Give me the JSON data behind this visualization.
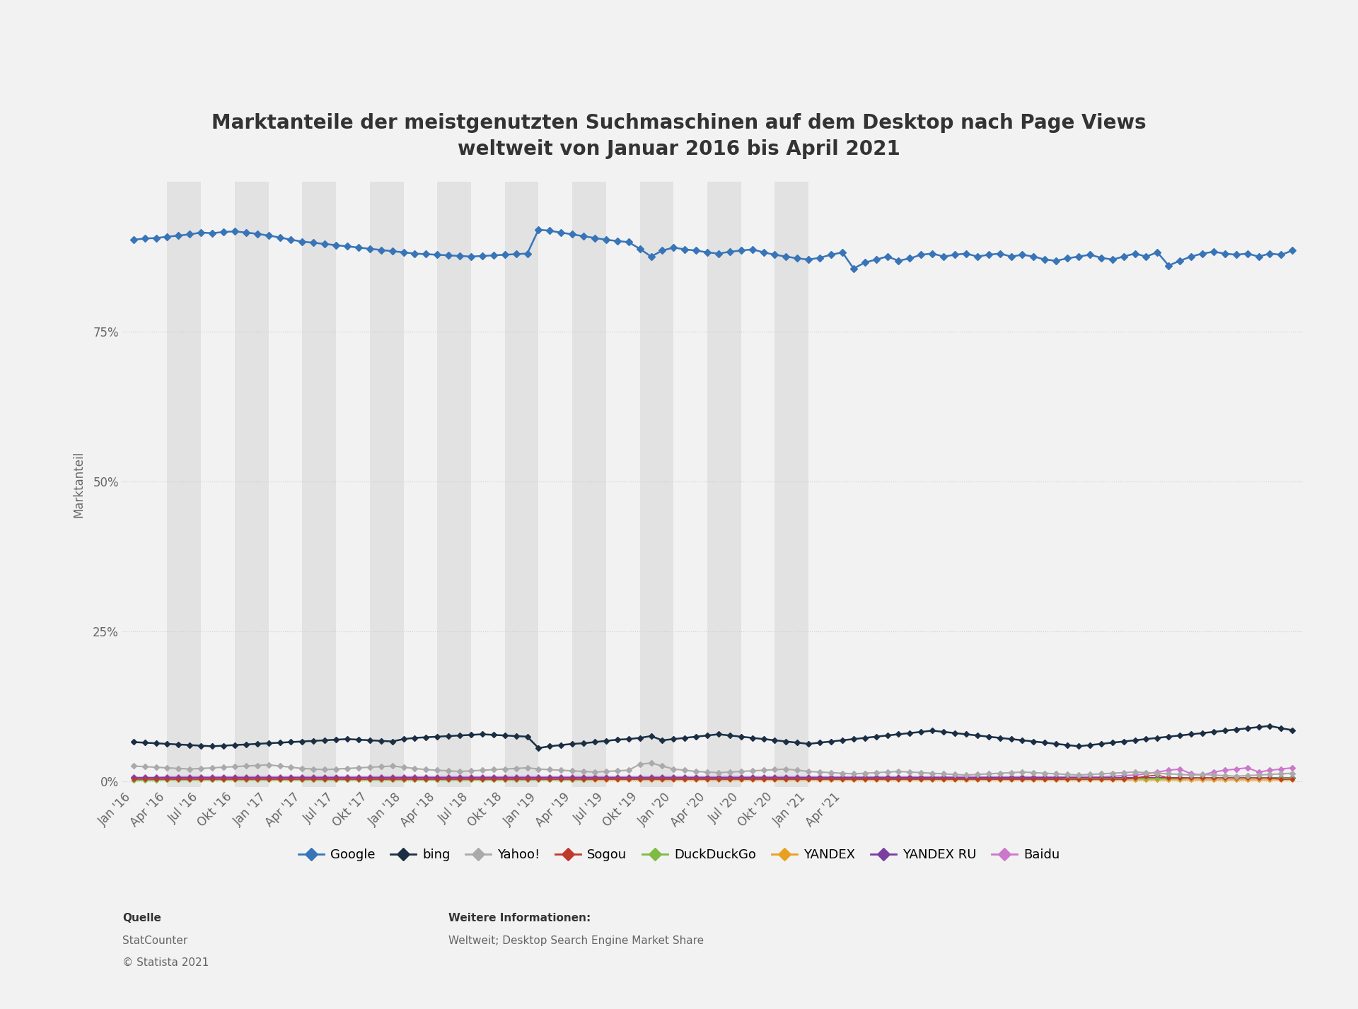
{
  "title": "Marktanteile der meistgenutzten Suchmaschinen auf dem Desktop nach Page Views\nweltweit von Januar 2016 bis April 2021",
  "ylabel": "Marktanteil",
  "bg_color": "#f2f2f2",
  "plot_bg_color": "#f2f2f2",
  "alt_col_color": "#e2e2e2",
  "grid_color": "#cccccc",
  "x_labels": [
    "Jan '16",
    "Apr '16",
    "Jul '16",
    "Okt '16",
    "Jan '17",
    "Apr '17",
    "Jul '17",
    "Okt '17",
    "Jan '18",
    "Apr '18",
    "Jul '18",
    "Okt '18",
    "Jan '19",
    "Apr '19",
    "Jul '19",
    "Okt '19",
    "Jan '20",
    "Apr '20",
    "Jul '20",
    "Okt '20",
    "Jan '21",
    "Apr '21"
  ],
  "series": {
    "Google": {
      "color": "#3874b8",
      "marker": "D",
      "linewidth": 1.8,
      "markersize": 5,
      "data": [
        90.3,
        90.5,
        90.6,
        90.8,
        91.0,
        91.2,
        91.5,
        91.4,
        91.6,
        91.7,
        91.5,
        91.3,
        91.0,
        90.7,
        90.3,
        90.0,
        89.8,
        89.6,
        89.4,
        89.2,
        89.0,
        88.8,
        88.6,
        88.4,
        88.2,
        88.0,
        87.9,
        87.8,
        87.7,
        87.6,
        87.5,
        87.6,
        87.7,
        87.8,
        87.9,
        88.0,
        92.0,
        91.8,
        91.5,
        91.2,
        90.9,
        90.6,
        90.3,
        90.1,
        89.9,
        88.8,
        87.5,
        88.5,
        89.0,
        88.7,
        88.5,
        88.2,
        88.0,
        88.3,
        88.5,
        88.7,
        88.2,
        87.8,
        87.5,
        87.2,
        87.0,
        87.3,
        87.8,
        88.2,
        85.5,
        86.5,
        87.0,
        87.5,
        86.8,
        87.2,
        87.8,
        88.0,
        87.5,
        87.8,
        88.0,
        87.5,
        87.8,
        88.0,
        87.5,
        87.8,
        87.5,
        87.0,
        86.8,
        87.2,
        87.5,
        87.8,
        87.3,
        87.0,
        87.5,
        88.0,
        87.5,
        88.2,
        86.0,
        86.8,
        87.5,
        88.0,
        88.3,
        88.0,
        87.8,
        88.0,
        87.5,
        88.0,
        87.8,
        88.5
      ]
    },
    "bing": {
      "color": "#1a2e44",
      "marker": "D",
      "linewidth": 1.8,
      "markersize": 4,
      "data": [
        6.5,
        6.4,
        6.3,
        6.2,
        6.1,
        6.0,
        5.9,
        5.8,
        5.9,
        6.0,
        6.1,
        6.2,
        6.3,
        6.4,
        6.5,
        6.6,
        6.7,
        6.8,
        6.9,
        7.0,
        6.9,
        6.8,
        6.7,
        6.6,
        7.0,
        7.2,
        7.3,
        7.4,
        7.5,
        7.6,
        7.7,
        7.8,
        7.7,
        7.6,
        7.5,
        7.4,
        5.5,
        5.8,
        6.0,
        6.2,
        6.3,
        6.5,
        6.7,
        6.9,
        7.0,
        7.2,
        7.5,
        6.8,
        7.0,
        7.2,
        7.4,
        7.6,
        7.8,
        7.6,
        7.4,
        7.2,
        7.0,
        6.8,
        6.6,
        6.4,
        6.2,
        6.4,
        6.6,
        6.8,
        7.0,
        7.2,
        7.4,
        7.6,
        7.8,
        8.0,
        8.2,
        8.4,
        8.2,
        8.0,
        7.8,
        7.6,
        7.4,
        7.2,
        7.0,
        6.8,
        6.6,
        6.4,
        6.2,
        6.0,
        5.8,
        6.0,
        6.2,
        6.4,
        6.6,
        6.8,
        7.0,
        7.2,
        7.4,
        7.6,
        7.8,
        8.0,
        8.2,
        8.4,
        8.6,
        8.8,
        9.0,
        9.2,
        8.8,
        8.5
      ]
    },
    "Yahoo!": {
      "color": "#aaaaaa",
      "marker": "D",
      "linewidth": 1.5,
      "markersize": 4,
      "data": [
        2.5,
        2.4,
        2.3,
        2.2,
        2.1,
        2.0,
        2.1,
        2.2,
        2.3,
        2.4,
        2.5,
        2.6,
        2.7,
        2.5,
        2.3,
        2.1,
        2.0,
        1.9,
        2.0,
        2.1,
        2.2,
        2.3,
        2.4,
        2.5,
        2.3,
        2.1,
        1.9,
        1.8,
        1.7,
        1.6,
        1.7,
        1.8,
        1.9,
        2.0,
        2.1,
        2.2,
        2.0,
        1.9,
        1.8,
        1.7,
        1.6,
        1.5,
        1.6,
        1.7,
        1.8,
        2.8,
        3.0,
        2.5,
        2.0,
        1.8,
        1.6,
        1.5,
        1.4,
        1.5,
        1.6,
        1.7,
        1.8,
        1.9,
        2.0,
        1.8,
        1.6,
        1.5,
        1.4,
        1.3,
        1.2,
        1.3,
        1.4,
        1.5,
        1.6,
        1.5,
        1.4,
        1.3,
        1.2,
        1.1,
        1.0,
        1.1,
        1.2,
        1.3,
        1.4,
        1.5,
        1.4,
        1.3,
        1.2,
        1.1,
        1.0,
        1.1,
        1.2,
        1.3,
        1.4,
        1.5,
        1.4,
        1.3,
        1.2,
        1.1,
        1.0,
        1.1,
        1.0,
        0.9,
        0.8,
        0.9,
        1.0,
        1.1,
        1.2,
        1.3
      ]
    },
    "Sogou": {
      "color": "#c0392b",
      "marker": "D",
      "linewidth": 1.2,
      "markersize": 3,
      "data": [
        0.3,
        0.3,
        0.3,
        0.3,
        0.3,
        0.3,
        0.3,
        0.3,
        0.3,
        0.3,
        0.3,
        0.3,
        0.3,
        0.3,
        0.3,
        0.3,
        0.3,
        0.3,
        0.3,
        0.3,
        0.3,
        0.3,
        0.3,
        0.3,
        0.3,
        0.3,
        0.3,
        0.3,
        0.3,
        0.3,
        0.3,
        0.3,
        0.3,
        0.3,
        0.3,
        0.3,
        0.3,
        0.3,
        0.3,
        0.3,
        0.3,
        0.3,
        0.3,
        0.3,
        0.3,
        0.3,
        0.3,
        0.3,
        0.3,
        0.3,
        0.3,
        0.3,
        0.3,
        0.3,
        0.3,
        0.3,
        0.3,
        0.3,
        0.3,
        0.3,
        0.3,
        0.3,
        0.3,
        0.3,
        0.3,
        0.3,
        0.3,
        0.3,
        0.3,
        0.3,
        0.3,
        0.3,
        0.3,
        0.3,
        0.3,
        0.3,
        0.3,
        0.3,
        0.3,
        0.3,
        0.3,
        0.3,
        0.3,
        0.3,
        0.3,
        0.3,
        0.3,
        0.3,
        0.3,
        0.5,
        0.8,
        1.0,
        0.5,
        0.5,
        0.5,
        0.5,
        0.5,
        0.5,
        0.5,
        0.5,
        0.5,
        0.5,
        0.3,
        0.3
      ]
    },
    "DuckDuckGo": {
      "color": "#7dbb42",
      "marker": "D",
      "linewidth": 1.2,
      "markersize": 3,
      "data": [
        0.1,
        0.1,
        0.1,
        0.2,
        0.2,
        0.2,
        0.2,
        0.2,
        0.2,
        0.2,
        0.2,
        0.2,
        0.2,
        0.2,
        0.2,
        0.2,
        0.2,
        0.2,
        0.2,
        0.2,
        0.2,
        0.2,
        0.2,
        0.2,
        0.2,
        0.2,
        0.2,
        0.2,
        0.2,
        0.2,
        0.2,
        0.2,
        0.2,
        0.2,
        0.2,
        0.2,
        0.2,
        0.2,
        0.2,
        0.2,
        0.2,
        0.3,
        0.3,
        0.3,
        0.3,
        0.3,
        0.3,
        0.3,
        0.3,
        0.3,
        0.3,
        0.3,
        0.3,
        0.3,
        0.3,
        0.3,
        0.3,
        0.3,
        0.3,
        0.3,
        0.3,
        0.3,
        0.3,
        0.3,
        0.3,
        0.3,
        0.3,
        0.3,
        0.3,
        0.3,
        0.3,
        0.3,
        0.3,
        0.3,
        0.3,
        0.3,
        0.3,
        0.3,
        0.3,
        0.3,
        0.3,
        0.3,
        0.3,
        0.4,
        0.4,
        0.4,
        0.4,
        0.4,
        0.4,
        0.4,
        0.4,
        0.4,
        0.4,
        0.4,
        0.5,
        0.5,
        0.5,
        0.5,
        0.5,
        0.5,
        0.5,
        0.5,
        0.5,
        0.5
      ]
    },
    "YANDEX": {
      "color": "#e8a020",
      "marker": "D",
      "linewidth": 1.2,
      "markersize": 3,
      "data": [
        0.15,
        0.15,
        0.15,
        0.15,
        0.15,
        0.15,
        0.15,
        0.15,
        0.15,
        0.15,
        0.15,
        0.15,
        0.15,
        0.15,
        0.15,
        0.15,
        0.15,
        0.15,
        0.15,
        0.15,
        0.15,
        0.15,
        0.15,
        0.15,
        0.15,
        0.15,
        0.15,
        0.15,
        0.15,
        0.15,
        0.15,
        0.15,
        0.15,
        0.15,
        0.15,
        0.15,
        0.15,
        0.15,
        0.15,
        0.15,
        0.15,
        0.15,
        0.15,
        0.15,
        0.15,
        0.15,
        0.15,
        0.15,
        0.15,
        0.15,
        0.15,
        0.15,
        0.15,
        0.15,
        0.15,
        0.15,
        0.15,
        0.15,
        0.15,
        0.15,
        0.15,
        0.15,
        0.15,
        0.15,
        0.15,
        0.15,
        0.15,
        0.15,
        0.15,
        0.15,
        0.15,
        0.15,
        0.15,
        0.15,
        0.15,
        0.15,
        0.15,
        0.15,
        0.15,
        0.15,
        0.15,
        0.15,
        0.15,
        0.15,
        0.15,
        0.15,
        0.15,
        0.15,
        0.15,
        0.15,
        0.15,
        0.15,
        0.15,
        0.15,
        0.15,
        0.15,
        0.15,
        0.15,
        0.15,
        0.15,
        0.15,
        0.15,
        0.15,
        0.15
      ]
    },
    "YANDEX RU": {
      "color": "#7b3fa0",
      "marker": "D",
      "linewidth": 1.5,
      "markersize": 4,
      "data": [
        0.5,
        0.5,
        0.5,
        0.5,
        0.5,
        0.5,
        0.5,
        0.5,
        0.5,
        0.5,
        0.5,
        0.5,
        0.5,
        0.5,
        0.5,
        0.5,
        0.5,
        0.5,
        0.5,
        0.5,
        0.5,
        0.5,
        0.5,
        0.5,
        0.5,
        0.5,
        0.5,
        0.5,
        0.5,
        0.5,
        0.5,
        0.5,
        0.5,
        0.5,
        0.5,
        0.5,
        0.5,
        0.5,
        0.5,
        0.5,
        0.5,
        0.5,
        0.5,
        0.5,
        0.5,
        0.5,
        0.5,
        0.5,
        0.5,
        0.5,
        0.5,
        0.5,
        0.5,
        0.5,
        0.5,
        0.5,
        0.5,
        0.5,
        0.5,
        0.5,
        0.5,
        0.5,
        0.5,
        0.5,
        0.5,
        0.5,
        0.5,
        0.5,
        0.5,
        0.5,
        0.5,
        0.5,
        0.5,
        0.5,
        0.5,
        0.5,
        0.5,
        0.5,
        0.5,
        0.5,
        0.5,
        0.5,
        0.5,
        0.5,
        0.5,
        0.5,
        0.5,
        0.5,
        0.5,
        0.5,
        0.5,
        0.5,
        0.5,
        0.5,
        0.5,
        0.5,
        0.5,
        0.5,
        0.5,
        0.5,
        0.5,
        0.5,
        0.5,
        0.5
      ]
    },
    "Baidu": {
      "color": "#cc77cc",
      "marker": "D",
      "linewidth": 1.5,
      "markersize": 4,
      "data": [
        0.6,
        0.6,
        0.6,
        0.7,
        0.7,
        0.7,
        0.7,
        0.7,
        0.7,
        0.7,
        0.7,
        0.7,
        0.7,
        0.7,
        0.7,
        0.7,
        0.7,
        0.7,
        0.7,
        0.7,
        0.7,
        0.7,
        0.7,
        0.7,
        0.7,
        0.7,
        0.7,
        0.7,
        0.7,
        0.7,
        0.7,
        0.7,
        0.7,
        0.7,
        0.7,
        0.7,
        0.7,
        0.7,
        0.7,
        0.7,
        0.7,
        0.7,
        0.7,
        0.7,
        0.7,
        0.7,
        0.7,
        0.7,
        0.7,
        0.7,
        0.7,
        0.7,
        0.7,
        0.7,
        0.7,
        0.7,
        0.7,
        0.7,
        0.7,
        0.7,
        0.7,
        0.7,
        0.7,
        0.7,
        0.7,
        0.7,
        0.7,
        0.7,
        0.7,
        0.7,
        0.7,
        0.7,
        0.7,
        0.7,
        0.7,
        0.7,
        0.7,
        0.7,
        0.7,
        0.7,
        0.7,
        0.7,
        0.7,
        0.7,
        0.7,
        0.7,
        0.7,
        0.8,
        0.9,
        1.0,
        1.2,
        1.5,
        1.8,
        2.0,
        1.2,
        1.0,
        1.5,
        1.8,
        2.0,
        2.2,
        1.5,
        1.8,
        2.0,
        2.2
      ]
    }
  },
  "yticks": [
    0,
    25,
    50,
    75
  ],
  "ylim": [
    -1,
    100
  ],
  "source_label": "Quelle",
  "source_text1": "StatCounter",
  "source_text2": "© Statista 2021",
  "info_label": "Weitere Informationen:",
  "info_text": "Weltweit; Desktop Search Engine Market Share"
}
